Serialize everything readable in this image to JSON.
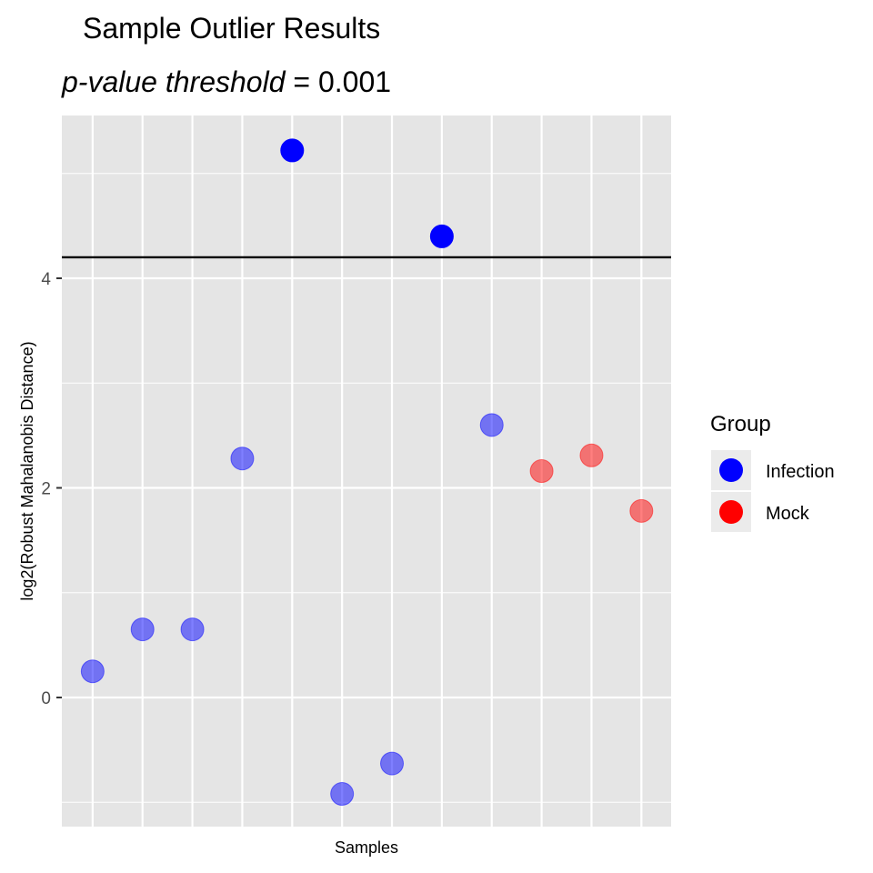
{
  "chart_data": {
    "type": "scatter",
    "title": "Sample Outlier Results",
    "subtitle": {
      "italic_part": "p-value threshold",
      "plain_part": " = 0.001"
    },
    "xlabel": "Samples",
    "ylabel": "log2(Robust Mahalanobis Distance)",
    "ylim": [
      -1.25,
      5.6
    ],
    "yticks": [
      0,
      2,
      4
    ],
    "ytick_labels": [
      "0",
      "2",
      "4"
    ],
    "threshold": 4.2,
    "grid": true,
    "legend": {
      "title": "Group",
      "position": "right",
      "items": [
        {
          "label": "Infection",
          "color": "#0000ff"
        },
        {
          "label": "Mock",
          "color": "#ff0000"
        }
      ]
    },
    "points": [
      {
        "index": 1,
        "y": 0.25,
        "group": "Infection",
        "outlier": false
      },
      {
        "index": 2,
        "y": 0.65,
        "group": "Infection",
        "outlier": false
      },
      {
        "index": 3,
        "y": 0.65,
        "group": "Infection",
        "outlier": false
      },
      {
        "index": 4,
        "y": 2.28,
        "group": "Infection",
        "outlier": false
      },
      {
        "index": 5,
        "y": 5.22,
        "group": "Infection",
        "outlier": true
      },
      {
        "index": 6,
        "y": -0.92,
        "group": "Infection",
        "outlier": false
      },
      {
        "index": 7,
        "y": -0.63,
        "group": "Infection",
        "outlier": false
      },
      {
        "index": 8,
        "y": 4.4,
        "group": "Infection",
        "outlier": true
      },
      {
        "index": 9,
        "y": 2.6,
        "group": "Infection",
        "outlier": false
      },
      {
        "index": 10,
        "y": 2.16,
        "group": "Mock",
        "outlier": false
      },
      {
        "index": 11,
        "y": 2.31,
        "group": "Mock",
        "outlier": false
      },
      {
        "index": 12,
        "y": 1.78,
        "group": "Mock",
        "outlier": false
      }
    ]
  }
}
